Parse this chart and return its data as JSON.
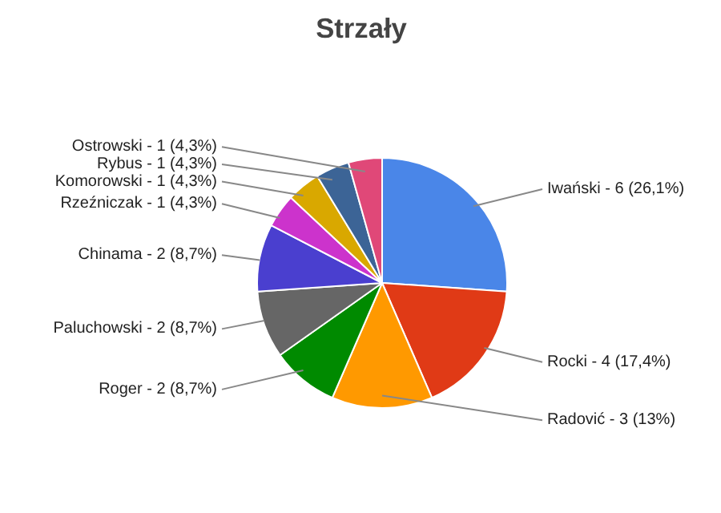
{
  "chart_data": {
    "type": "pie",
    "title": "Strzały",
    "categories": [
      "Iwański",
      "Rocki",
      "Radović",
      "Roger",
      "Paluchowski",
      "Chinama",
      "Rzeźniczak",
      "Komorowski",
      "Rybus",
      "Ostrowski"
    ],
    "values": [
      6,
      4,
      3,
      2,
      2,
      2,
      1,
      1,
      1,
      1
    ],
    "value_labels": [
      "6 (26,1%)",
      "4 (17,4%)",
      "3 (13%)",
      "2 (8,7%)",
      "2 (8,7%)",
      "2 (8,7%)",
      "1 (4,3%)",
      "1 (4,3%)",
      "1 (4,3%)",
      "1 (4,3%)"
    ],
    "colors": [
      "#4a86e8",
      "#e03a16",
      "#ff9900",
      "#008a00",
      "#666666",
      "#4a3fcf",
      "#cc33cc",
      "#d9a800",
      "#3c6496",
      "#e04878"
    ]
  }
}
